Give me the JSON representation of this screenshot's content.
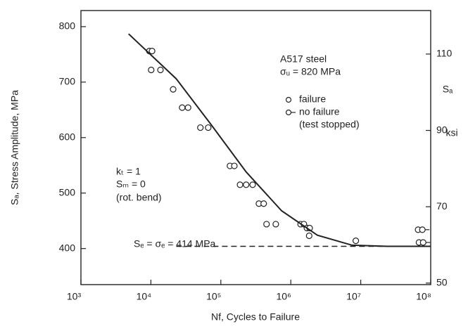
{
  "chart_data": {
    "type": "scatter",
    "xlabel": "Nf, Cycles to Failure",
    "ylabel": "Sₐ, Stress Amplitude, MPa",
    "y2label": "Sₐ",
    "y2unit": "ksi",
    "xscale": "log",
    "xlim": [
      1000,
      100000000
    ],
    "xticks": [
      {
        "value": 1000,
        "label": "10³"
      },
      {
        "value": 10000,
        "label": "10⁴"
      },
      {
        "value": 100000,
        "label": "10⁵"
      },
      {
        "value": 1000000,
        "label": "10⁶"
      },
      {
        "value": 10000000,
        "label": "10⁷"
      },
      {
        "value": 100000000,
        "label": "10⁸"
      }
    ],
    "ylim": [
      335,
      829
    ],
    "yticks": [
      400,
      500,
      600,
      700,
      800
    ],
    "y2lim": [
      49.6,
      121.4
    ],
    "y2ticks": [
      50,
      70,
      90,
      110
    ],
    "color": "#222222",
    "series": [
      {
        "name": "failure",
        "marker": "circle",
        "x": [
          9500,
          10400,
          10100,
          13700,
          20800,
          28000,
          34000,
          51000,
          66000,
          135000,
          156000,
          188000,
          230000,
          285000,
          350000,
          410000,
          450000,
          610000,
          1380000,
          1540000,
          1700000,
          1830000,
          1860000,
          8500000
        ],
        "y": [
          756,
          756,
          722,
          722,
          687,
          654,
          654,
          618,
          618,
          549,
          549,
          515,
          515,
          515,
          481,
          481,
          444,
          444,
          444,
          444,
          437,
          423,
          437,
          414
        ]
      },
      {
        "name": "no failure",
        "note": "(test stopped)",
        "marker": "runout",
        "x": [
          66000000,
          76000000,
          68000000,
          78000000
        ],
        "y": [
          434,
          434,
          411,
          411
        ]
      },
      {
        "style": "line",
        "x": [
          4800,
          23000,
          73000,
          230000,
          740000,
          2400000,
          7500000,
          24000000,
          100000000
        ],
        "y": [
          787,
          706,
          623,
          538,
          468,
          424,
          406,
          404,
          404
        ]
      },
      {
        "style": "dashed",
        "x": [
          23000,
          100000000
        ],
        "y": [
          404,
          404
        ]
      }
    ],
    "annotations": [
      "A517 steel",
      "σᵤ = 820 MPa",
      "kₜ = 1",
      "Sₘ = 0",
      "(rot. bend)",
      "Sₑ = σₑ = 414 MPa"
    ]
  }
}
